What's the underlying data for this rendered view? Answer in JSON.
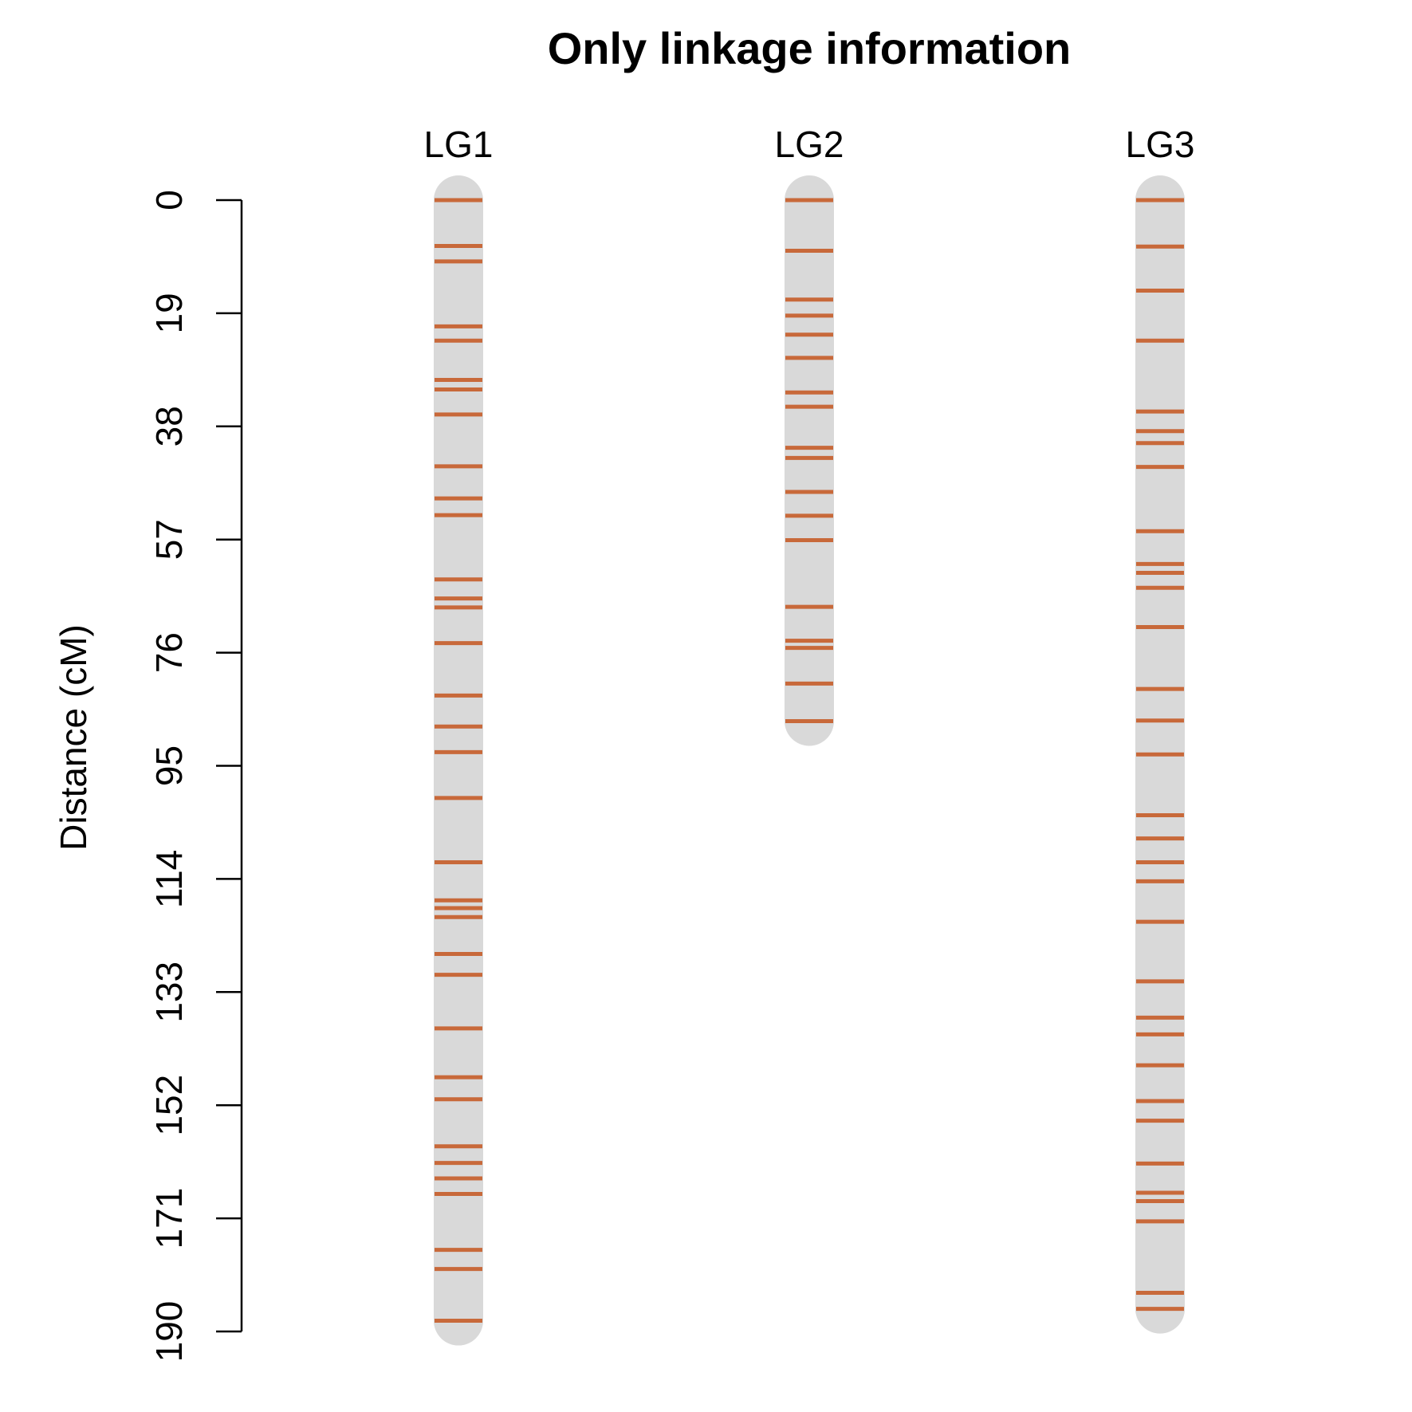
{
  "chart_data": {
    "type": "linkage-map",
    "title": "Only linkage information",
    "ylabel": "Distance (cM)",
    "ylim": [
      0,
      190
    ],
    "yticks": [
      "0",
      "19",
      "38",
      "57",
      "76",
      "95",
      "114",
      "133",
      "152",
      "171",
      "190"
    ],
    "colors": {
      "chromosome": "#d9d9d9",
      "marker": "#c8693a",
      "axis": "#000000"
    },
    "groups": [
      {
        "name": "LG1",
        "length": 188.2,
        "markers": [
          0,
          7.7,
          10.3,
          21.2,
          23.6,
          30.2,
          31.8,
          36.0,
          44.7,
          50.1,
          52.9,
          63.7,
          66.9,
          68.4,
          74.4,
          83.2,
          88.4,
          92.7,
          100.4,
          111.2,
          117.6,
          118.9,
          120.4,
          126.6,
          130.1,
          139.1,
          147.3,
          151.0,
          158.9,
          161.7,
          164.3,
          166.9,
          176.3,
          179.5,
          188.2
        ]
      },
      {
        "name": "LG2",
        "length": 87.5,
        "markers": [
          0,
          8.5,
          16.7,
          19.4,
          22.6,
          26.5,
          32.3,
          34.7,
          41.6,
          43.3,
          49.0,
          53.0,
          57.1,
          68.3,
          74.0,
          75.2,
          81.2,
          87.5
        ]
      },
      {
        "name": "LG3",
        "length": 186.2,
        "markers": [
          0,
          7.8,
          15.2,
          23.6,
          35.5,
          38.8,
          40.8,
          44.8,
          55.6,
          61.1,
          62.6,
          65.1,
          71.7,
          82.1,
          87.4,
          93.1,
          103.3,
          107.2,
          111.2,
          114.4,
          121.2,
          131.2,
          137.3,
          140.1,
          145.3,
          151.3,
          154.6,
          161.8,
          166.7,
          168.1,
          171.5,
          183.5,
          186.2
        ]
      }
    ]
  }
}
